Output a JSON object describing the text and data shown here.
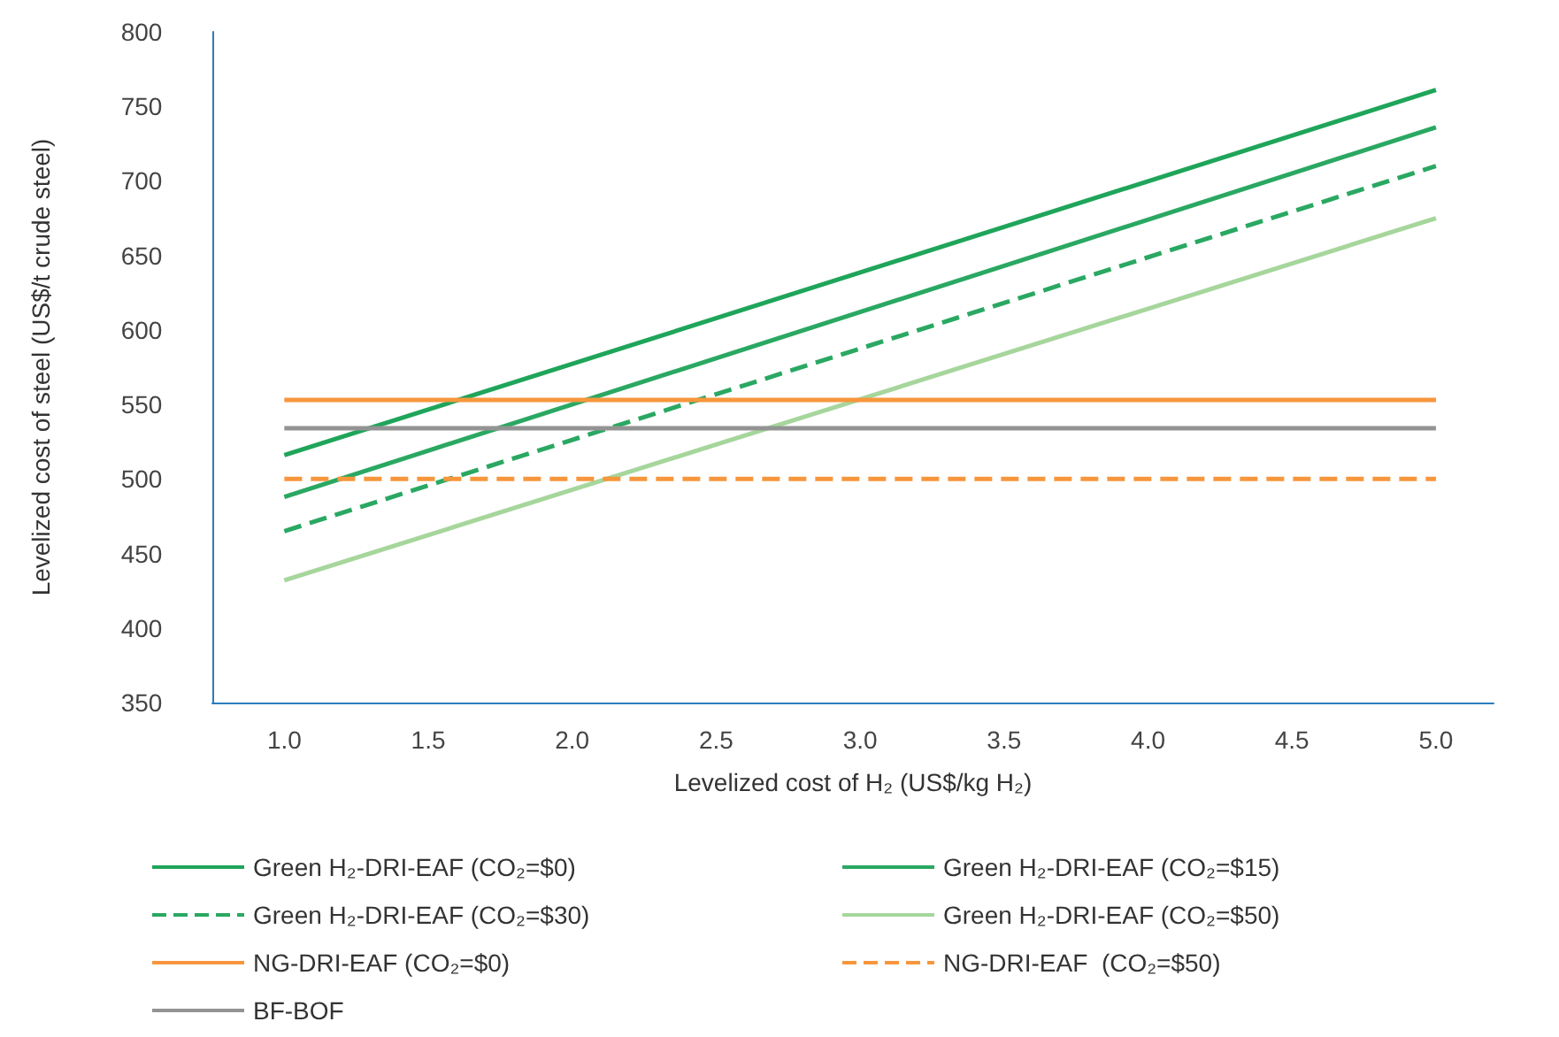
{
  "chart_data": {
    "type": "line",
    "xlabel": "Levelized cost of H₂ (US$/kg H₂)",
    "ylabel": "Levelized cost of steel (US$/t crude steel)",
    "xlim": [
      0.75,
      5.2
    ],
    "xticks": [
      {
        "value": 1,
        "label": "1.0"
      },
      {
        "value": 1.5,
        "label": "1.5"
      },
      {
        "value": 2,
        "label": "2.0"
      },
      {
        "value": 2.5,
        "label": "2.5"
      },
      {
        "value": 3,
        "label": "3.0"
      },
      {
        "value": 3.5,
        "label": "3.5"
      },
      {
        "value": 4,
        "label": "4.0"
      },
      {
        "value": 4.5,
        "label": "4.5"
      },
      {
        "value": 5,
        "label": "5.0"
      }
    ],
    "ylim": [
      350,
      800
    ],
    "yticks": [
      350,
      400,
      450,
      500,
      550,
      600,
      650,
      700,
      750,
      800
    ],
    "grid": false,
    "legend": "bottom",
    "marker": "none",
    "x": [
      1,
      5
    ],
    "series": [
      {
        "name": "Green H₂-DRI-EAF (CO₂=$0)",
        "color": "#1fa55a",
        "values": [
          516,
          761
        ],
        "line_style": "solid"
      },
      {
        "name": "Green H₂-DRI-EAF (CO₂=$15)",
        "color": "#2aa862",
        "values": [
          488,
          736
        ],
        "line_style": "solid"
      },
      {
        "name": "Green H₂-DRI-EAF (CO₂=$30)",
        "color": "#2aa862",
        "values": [
          465,
          710
        ],
        "line_style": "dashed"
      },
      {
        "name": "Green H₂-DRI-EAF (CO₂=$50)",
        "color": "#a6d69c",
        "values": [
          432,
          675
        ],
        "line_style": "solid"
      },
      {
        "name": "NG-DRI-EAF (CO₂=$0)",
        "color": "#f7963c",
        "values": [
          553,
          553
        ],
        "line_style": "solid"
      },
      {
        "name": "NG-DRI-EAF  (CO₂=$50)",
        "color": "#f7963c",
        "values": [
          500,
          500
        ],
        "line_style": "dashed"
      },
      {
        "name": "BF-BOF",
        "color": "#939393",
        "values": [
          534,
          534
        ],
        "line_style": "solid"
      }
    ]
  }
}
